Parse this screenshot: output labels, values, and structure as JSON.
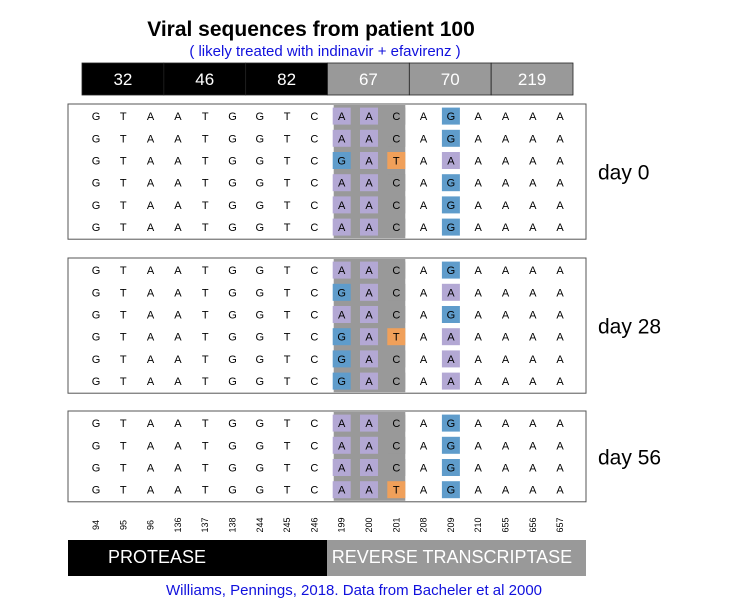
{
  "title": "Viral sequences from patient 100",
  "subtitle": "( likely treated with indinavir + efavirenz )",
  "colors": {
    "protease": "#000000",
    "rt": "#999999",
    "codon_highlight": "#999999",
    "A": "#b3a8d4",
    "G": "#5f9ccb",
    "T": "#f0a05a",
    "C": "#999999",
    "text_blue": "#1111dd"
  },
  "codons": [
    {
      "label": "32",
      "gene": "protease"
    },
    {
      "label": "46",
      "gene": "protease"
    },
    {
      "label": "82",
      "gene": "protease"
    },
    {
      "label": "67",
      "gene": "rt"
    },
    {
      "label": "70",
      "gene": "rt"
    },
    {
      "label": "219",
      "gene": "rt"
    }
  ],
  "highlighted_columns": [
    9,
    10,
    11,
    13
  ],
  "panels": [
    {
      "day": "day 0",
      "sequences": [
        "GTAATGGTCAACAGAAAA",
        "GTAATGGTCAACAGAAAA",
        "GTAATGGTCGATAAAAAA",
        "GTAATGGTCAACAGAAAA",
        "GTAATGGTCAACAGAAAA",
        "GTAATGGTCAACAGAAAA"
      ]
    },
    {
      "day": "day 28",
      "sequences": [
        "GTAATGGTCAACAGAAAA",
        "GTAATGGTCGACAAAAAA",
        "GTAATGGTCAACAGAAAA",
        "GTAATGGTCGATAAAAAA",
        "GTAATGGTCGACAAAAAA",
        "GTAATGGTCGACAAAAAA"
      ]
    },
    {
      "day": "day 56",
      "sequences": [
        "GTAATGGTCAACAGAAAA",
        "GTAATGGTCAACAGAAAA",
        "GTAATGGTCAACAGAAAA",
        "GTAATGGTCAATAGAAAA"
      ]
    }
  ],
  "positions": [
    "94",
    "95",
    "96",
    "136",
    "137",
    "138",
    "244",
    "245",
    "246",
    "199",
    "200",
    "201",
    "208",
    "209",
    "210",
    "655",
    "656",
    "657"
  ],
  "genes": {
    "protease": "PROTEASE",
    "rt": "REVERSE TRANSCRIPTASE"
  },
  "credit": "Williams, Pennings, 2018. Data from Bacheler et al 2000"
}
